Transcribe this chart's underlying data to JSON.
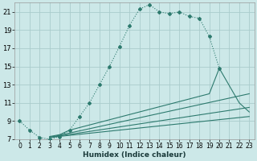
{
  "xlabel": "Humidex (Indice chaleur)",
  "bg_color": "#cce8e8",
  "grid_color": "#aacccc",
  "line_color": "#2d7a6e",
  "xlim": [
    -0.5,
    23.5
  ],
  "ylim": [
    7,
    22
  ],
  "xticks": [
    0,
    1,
    2,
    3,
    4,
    5,
    6,
    7,
    8,
    9,
    10,
    11,
    12,
    13,
    14,
    15,
    16,
    17,
    18,
    19,
    20,
    21,
    22,
    23
  ],
  "yticks": [
    7,
    9,
    11,
    13,
    15,
    17,
    19,
    21
  ],
  "series1_x": [
    0,
    1,
    2,
    3,
    4,
    5,
    6,
    7,
    8,
    9,
    10,
    11,
    12,
    13,
    14,
    15,
    16,
    17,
    18,
    19,
    20
  ],
  "series1_y": [
    9.0,
    8.0,
    7.2,
    7.0,
    7.3,
    8.0,
    9.5,
    11.0,
    13.0,
    15.0,
    17.2,
    19.5,
    21.3,
    21.8,
    21.0,
    20.8,
    21.0,
    20.5,
    20.3,
    18.3,
    14.8
  ],
  "series2_x": [
    3,
    4,
    5,
    19,
    20,
    22,
    23
  ],
  "series2_y": [
    7.3,
    7.5,
    8.0,
    12.0,
    14.8,
    11.0,
    10.0
  ],
  "series3_x": [
    3,
    23
  ],
  "series3_y": [
    7.2,
    12.0
  ],
  "series4_x": [
    3,
    23
  ],
  "series4_y": [
    7.2,
    10.5
  ],
  "series5_x": [
    3,
    23
  ],
  "series5_y": [
    7.2,
    9.5
  ]
}
